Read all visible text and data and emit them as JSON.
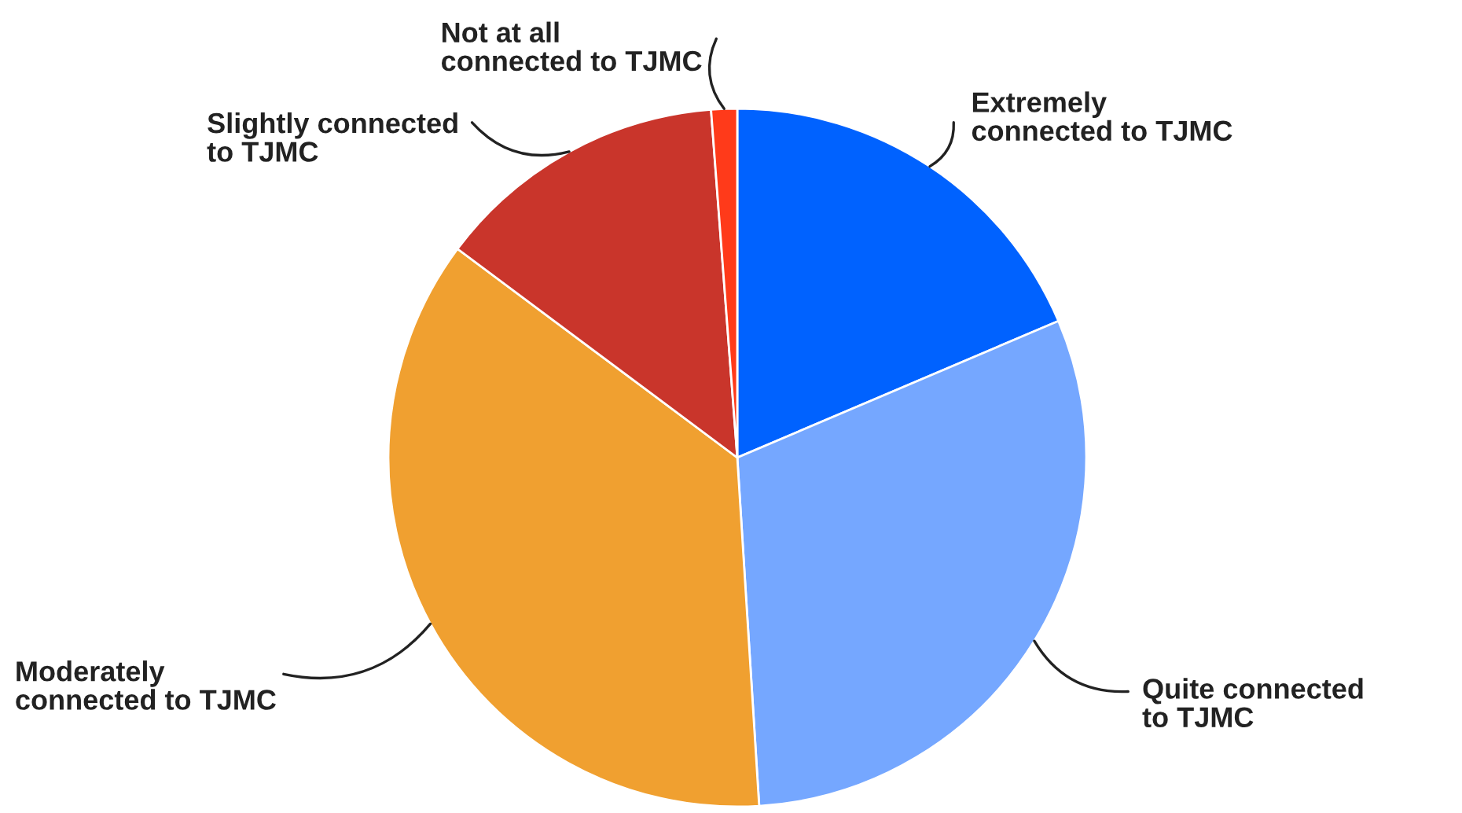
{
  "chart_data": {
    "type": "pie",
    "categories": [
      "Extremely connected to TJMC",
      "Quite connected to TJMC",
      "Moderately connected to TJMC",
      "Slightly connected to TJMC",
      "Not at all connected to TJMC"
    ],
    "values": [
      18.6,
      30.4,
      36.2,
      13.6,
      1.2
    ],
    "colors": [
      "#0062ff",
      "#75a7ff",
      "#f0a030",
      "#c9352b",
      "#ff3a1a"
    ]
  }
}
